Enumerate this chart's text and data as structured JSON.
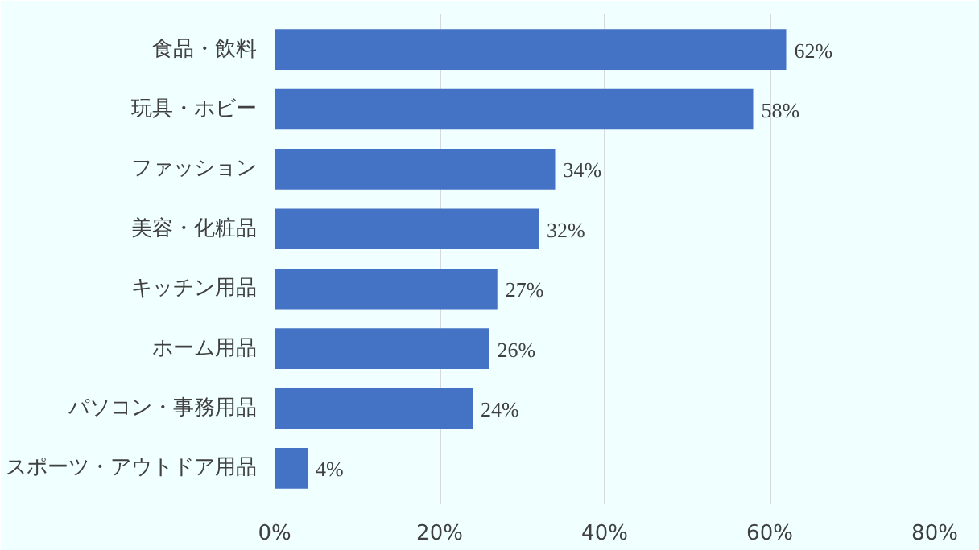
{
  "chart_data": {
    "type": "bar",
    "orientation": "horizontal",
    "categories": [
      "食品・飲料",
      "玩具・ホビー",
      "ファッション",
      "美容・化粧品",
      "キッチン用品",
      "ホーム用品",
      "パソコン・事務用品",
      "スポーツ・アウトドア用品"
    ],
    "values": [
      62,
      58,
      34,
      32,
      27,
      26,
      24,
      4
    ],
    "color": "#4472c4",
    "value_labels": [
      "62%",
      "58%",
      "34%",
      "32%",
      "27%",
      "26%",
      "24%",
      "4%"
    ],
    "xlim": [
      0,
      80
    ],
    "xticks": [
      {
        "value": 0,
        "label": "0%"
      },
      {
        "value": 20,
        "label": "20%"
      },
      {
        "value": 40,
        "label": "40%"
      },
      {
        "value": 60,
        "label": "60%"
      },
      {
        "value": 80,
        "label": "80%"
      }
    ],
    "grid": "x"
  }
}
